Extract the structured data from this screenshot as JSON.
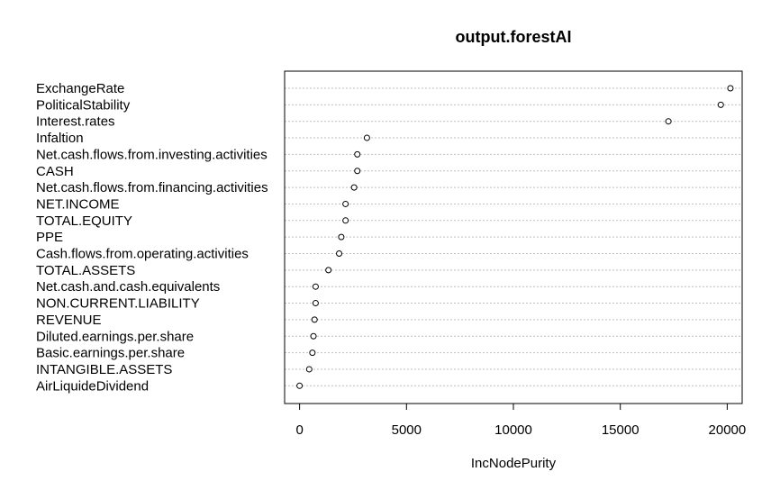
{
  "chart_data": {
    "type": "scatter",
    "subtype": "dotchart",
    "title": "output.forestAI",
    "xlabel": "IncNodePurity",
    "ylabel": "",
    "xlim": [
      -700,
      20700
    ],
    "xticks": [
      0,
      5000,
      10000,
      15000,
      20000
    ],
    "xtick_labels": [
      "0",
      "5000",
      "10000",
      "15000",
      "20000"
    ],
    "grid": "horizontal-dotted",
    "categories": [
      "ExchangeRate",
      "PoliticalStability",
      "Interest.rates",
      "Infaltion",
      "Net.cash.flows.from.investing.activities",
      "CASH",
      "Net.cash.flows.from.financing.activities",
      "NET.INCOME",
      "TOTAL.EQUITY",
      "PPE",
      "Cash.flows.from.operating.activities",
      "TOTAL.ASSETS",
      "Net.cash.and.cash.equivalents",
      "NON.CURRENT.LIABILITY",
      "REVENUE",
      "Diluted.earnings.per.share",
      "Basic.earnings.per.share",
      "INTANGIBLE.ASSETS",
      "AirLiquideDividend"
    ],
    "values": [
      20150,
      19700,
      17250,
      3150,
      2700,
      2700,
      2550,
      2150,
      2150,
      1950,
      1850,
      1350,
      750,
      750,
      700,
      650,
      600,
      450,
      0
    ]
  },
  "colors": {
    "background": "#ffffff",
    "axis": "#000000",
    "grid": "#bebebe",
    "point_stroke": "#000000",
    "point_fill": "#ffffff"
  }
}
